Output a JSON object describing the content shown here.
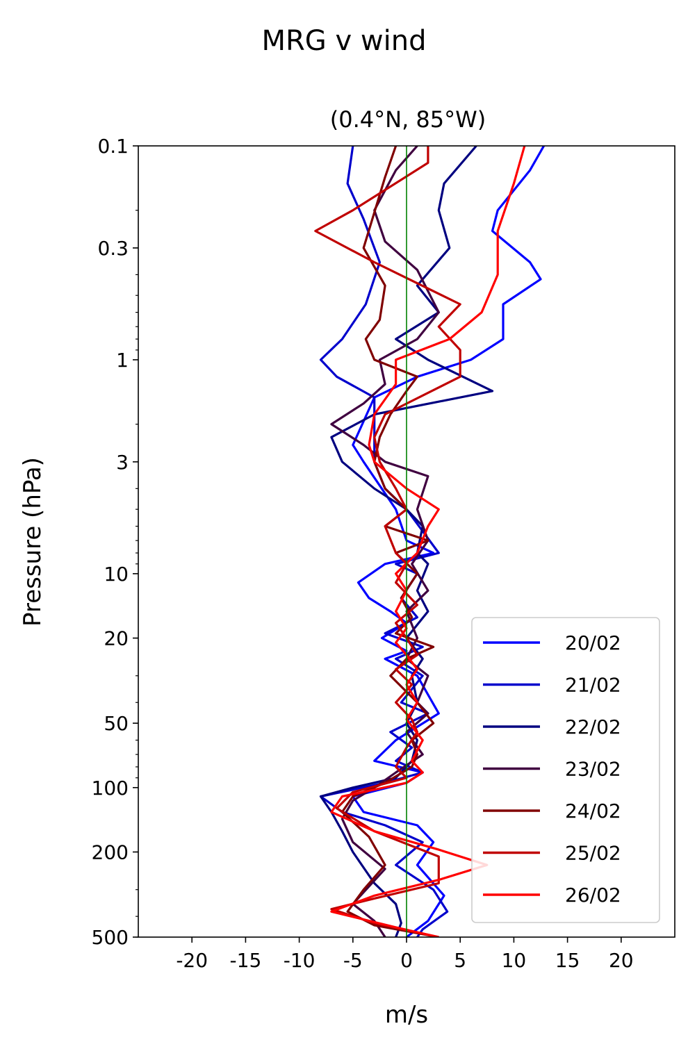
{
  "chart_data": {
    "type": "line",
    "title": "MRG v wind",
    "subtitle": "(0.4°N, 85°W)",
    "xlabel": "m/s",
    "ylabel": "Pressure (hPa)",
    "xlim": [
      -25,
      25
    ],
    "ylim": [
      500,
      0.1
    ],
    "yscale": "log",
    "x_ticks": [
      -20,
      -15,
      -10,
      -5,
      0,
      5,
      10,
      15,
      20
    ],
    "x_tick_labels": [
      "-20",
      "-15",
      "-10",
      "-5",
      "0",
      "5",
      "10",
      "15",
      "20"
    ],
    "y_ticks": [
      0.1,
      0.3,
      1,
      3,
      10,
      20,
      50,
      100,
      200,
      500
    ],
    "y_tick_labels": [
      "0.1",
      "0.3",
      "1",
      "3",
      "10",
      "20",
      "50",
      "100",
      "200",
      "500"
    ],
    "zero_line_color": "#008000",
    "legend_position": "lower right",
    "series": [
      {
        "name": "20/02",
        "color": "#0000ff",
        "points": [
          [
            12.8,
            0.1
          ],
          [
            11.5,
            0.13
          ],
          [
            8.5,
            0.2
          ],
          [
            8,
            0.25
          ],
          [
            11.5,
            0.35
          ],
          [
            12.5,
            0.42
          ],
          [
            9,
            0.55
          ],
          [
            9,
            0.8
          ],
          [
            6,
            1
          ],
          [
            1,
            1.2
          ],
          [
            -3,
            1.5
          ],
          [
            -5,
            2.5
          ],
          [
            -4,
            3
          ],
          [
            -1,
            5
          ],
          [
            0,
            7
          ],
          [
            2.5,
            8
          ],
          [
            -2,
            9
          ],
          [
            -4.5,
            11
          ],
          [
            -3.5,
            13
          ],
          [
            -1.5,
            15
          ],
          [
            0,
            17
          ],
          [
            -2.3,
            20
          ],
          [
            0,
            23
          ],
          [
            -2,
            25
          ],
          [
            1,
            30
          ],
          [
            3,
            45
          ],
          [
            -1,
            60
          ],
          [
            -3,
            75
          ],
          [
            1.5,
            85
          ],
          [
            0,
            95
          ],
          [
            -5,
            110
          ],
          [
            -4,
            130
          ],
          [
            1,
            150
          ],
          [
            2.5,
            180
          ],
          [
            1,
            230
          ],
          [
            3.5,
            320
          ],
          [
            2,
            420
          ],
          [
            0,
            500
          ]
        ]
      },
      {
        "name": "21/02",
        "color": "#0000cc",
        "points": [
          [
            -5,
            0.1
          ],
          [
            -5.5,
            0.15
          ],
          [
            -4,
            0.22
          ],
          [
            -2.5,
            0.35
          ],
          [
            -3.8,
            0.55
          ],
          [
            -6,
            0.8
          ],
          [
            -8,
            1
          ],
          [
            -6.5,
            1.2
          ],
          [
            -3,
            1.5
          ],
          [
            -3,
            2
          ],
          [
            -3,
            3
          ],
          [
            -2,
            4
          ],
          [
            0,
            5
          ],
          [
            3,
            8
          ],
          [
            -1,
            9
          ],
          [
            1,
            10
          ],
          [
            -0.5,
            13
          ],
          [
            1,
            16
          ],
          [
            -2,
            19
          ],
          [
            1.5,
            22
          ],
          [
            -1,
            25
          ],
          [
            1.5,
            30
          ],
          [
            -0.5,
            40
          ],
          [
            2,
            45
          ],
          [
            -1.5,
            55
          ],
          [
            0.5,
            65
          ],
          [
            -1,
            75
          ],
          [
            1.5,
            85
          ],
          [
            -2,
            95
          ],
          [
            -8,
            110
          ],
          [
            -6,
            130
          ],
          [
            -2,
            150
          ],
          [
            1.5,
            180
          ],
          [
            -1,
            230
          ],
          [
            2.5,
            300
          ],
          [
            3.8,
            380
          ],
          [
            1.5,
            460
          ],
          [
            1,
            500
          ]
        ]
      },
      {
        "name": "22/02",
        "color": "#000080",
        "points": [
          [
            6.5,
            0.1
          ],
          [
            3.5,
            0.15
          ],
          [
            3,
            0.2
          ],
          [
            4,
            0.3
          ],
          [
            1,
            0.45
          ],
          [
            3,
            0.6
          ],
          [
            -1,
            0.8
          ],
          [
            2,
            1
          ],
          [
            8,
            1.4
          ],
          [
            -3,
            1.8
          ],
          [
            -7,
            2.3
          ],
          [
            -6,
            3
          ],
          [
            -3,
            4
          ],
          [
            0,
            5
          ],
          [
            1.5,
            6
          ],
          [
            1,
            8
          ],
          [
            2,
            9
          ],
          [
            1,
            12
          ],
          [
            2,
            15
          ],
          [
            0,
            20
          ],
          [
            1.5,
            25
          ],
          [
            0.5,
            30
          ],
          [
            1,
            40
          ],
          [
            0,
            50
          ],
          [
            1,
            60
          ],
          [
            0.5,
            75
          ],
          [
            -1,
            90
          ],
          [
            -5,
            100
          ],
          [
            -8,
            110
          ],
          [
            -7,
            130
          ],
          [
            -6,
            160
          ],
          [
            -5,
            200
          ],
          [
            -3,
            280
          ],
          [
            -1,
            350
          ],
          [
            -0.5,
            430
          ],
          [
            -1,
            500
          ]
        ]
      },
      {
        "name": "23/02",
        "color": "#400040",
        "points": [
          [
            1,
            0.1
          ],
          [
            -1,
            0.13
          ],
          [
            -3,
            0.2
          ],
          [
            -2,
            0.28
          ],
          [
            1,
            0.38
          ],
          [
            3,
            0.6
          ],
          [
            1,
            0.8
          ],
          [
            -2.5,
            1
          ],
          [
            -2,
            1.3
          ],
          [
            -4,
            1.6
          ],
          [
            -7,
            2
          ],
          [
            -4,
            2.5
          ],
          [
            -2,
            3
          ],
          [
            2,
            3.5
          ],
          [
            1,
            5
          ],
          [
            2,
            7
          ],
          [
            0.5,
            9
          ],
          [
            2,
            12
          ],
          [
            0,
            15
          ],
          [
            1,
            20
          ],
          [
            0,
            25
          ],
          [
            2,
            30
          ],
          [
            1,
            40
          ],
          [
            2,
            45
          ],
          [
            0,
            55
          ],
          [
            1.5,
            70
          ],
          [
            -1,
            85
          ],
          [
            -3,
            100
          ],
          [
            -5,
            115
          ],
          [
            -6,
            140
          ],
          [
            -5,
            180
          ],
          [
            -2,
            240
          ],
          [
            -5,
            350
          ],
          [
            -3,
            420
          ],
          [
            -2,
            500
          ]
        ]
      },
      {
        "name": "24/02",
        "color": "#800000",
        "points": [
          [
            -1,
            0.1
          ],
          [
            -2,
            0.14
          ],
          [
            -4,
            0.3
          ],
          [
            -2,
            0.45
          ],
          [
            -2.5,
            0.65
          ],
          [
            -3.8,
            0.8
          ],
          [
            -3,
            1
          ],
          [
            1,
            1.2
          ],
          [
            0,
            1.4
          ],
          [
            -1.5,
            1.8
          ],
          [
            -2.5,
            2.3
          ],
          [
            -3,
            3
          ],
          [
            -2,
            4
          ],
          [
            0,
            5
          ],
          [
            -2,
            6
          ],
          [
            2,
            7
          ],
          [
            -1,
            8
          ],
          [
            1,
            10
          ],
          [
            -0.5,
            13
          ],
          [
            0.5,
            16
          ],
          [
            -1,
            19
          ],
          [
            2.5,
            22
          ],
          [
            0,
            25
          ],
          [
            -1.5,
            30
          ],
          [
            1,
            40
          ],
          [
            2.5,
            50
          ],
          [
            0.5,
            60
          ],
          [
            1,
            70
          ],
          [
            0.5,
            80
          ],
          [
            -2,
            95
          ],
          [
            -5,
            110
          ],
          [
            -6,
            130
          ],
          [
            -3.5,
            170
          ],
          [
            -2,
            230
          ],
          [
            -4,
            300
          ],
          [
            -5.5,
            380
          ],
          [
            -3,
            440
          ],
          [
            3,
            500
          ]
        ]
      },
      {
        "name": "25/02",
        "color": "#c00000",
        "points": [
          [
            2,
            0.1
          ],
          [
            2,
            0.12
          ],
          [
            -5,
            0.2
          ],
          [
            -8.5,
            0.25
          ],
          [
            -3,
            0.35
          ],
          [
            5,
            0.55
          ],
          [
            3,
            0.7
          ],
          [
            5,
            0.9
          ],
          [
            5,
            1.2
          ],
          [
            -2,
            1.8
          ],
          [
            -3,
            2.3
          ],
          [
            -2.5,
            3
          ],
          [
            -1,
            4
          ],
          [
            0,
            5
          ],
          [
            -2,
            6
          ],
          [
            -1,
            8
          ],
          [
            0,
            9
          ],
          [
            -1,
            11
          ],
          [
            1,
            14
          ],
          [
            -1,
            17
          ],
          [
            0,
            20
          ],
          [
            1,
            24
          ],
          [
            -1,
            28
          ],
          [
            0.5,
            33
          ],
          [
            -1,
            40
          ],
          [
            0.5,
            48
          ],
          [
            1,
            55
          ],
          [
            0,
            65
          ],
          [
            -1,
            80
          ],
          [
            0,
            90
          ],
          [
            -5,
            105
          ],
          [
            -6.5,
            125
          ],
          [
            -3,
            160
          ],
          [
            3,
            210
          ],
          [
            3,
            280
          ],
          [
            -3,
            330
          ],
          [
            -7,
            370
          ],
          [
            -3,
            430
          ],
          [
            3,
            500
          ]
        ]
      },
      {
        "name": "26/02",
        "color": "#ff0000",
        "points": [
          [
            11,
            0.1
          ],
          [
            10,
            0.15
          ],
          [
            8.5,
            0.25
          ],
          [
            8.5,
            0.4
          ],
          [
            7,
            0.6
          ],
          [
            4,
            0.8
          ],
          [
            -1,
            1
          ],
          [
            -1,
            1.3
          ],
          [
            -3,
            1.8
          ],
          [
            -3.5,
            2.5
          ],
          [
            -3,
            3
          ],
          [
            0,
            4
          ],
          [
            3,
            5
          ],
          [
            2,
            6
          ],
          [
            1,
            8
          ],
          [
            -1,
            10
          ],
          [
            0,
            12
          ],
          [
            -1,
            15
          ],
          [
            0,
            18
          ],
          [
            -1,
            21
          ],
          [
            0,
            24
          ],
          [
            1,
            28
          ],
          [
            0,
            33
          ],
          [
            1,
            40
          ],
          [
            0,
            48
          ],
          [
            1.5,
            60
          ],
          [
            0.5,
            75
          ],
          [
            1.5,
            85
          ],
          [
            0,
            95
          ],
          [
            -6,
            110
          ],
          [
            -7,
            130
          ],
          [
            -3,
            160
          ],
          [
            3,
            195
          ],
          [
            7.5,
            230
          ],
          [
            3,
            270
          ],
          [
            -3,
            320
          ],
          [
            -7,
            380
          ],
          [
            -1,
            450
          ],
          [
            3,
            500
          ]
        ]
      }
    ]
  }
}
